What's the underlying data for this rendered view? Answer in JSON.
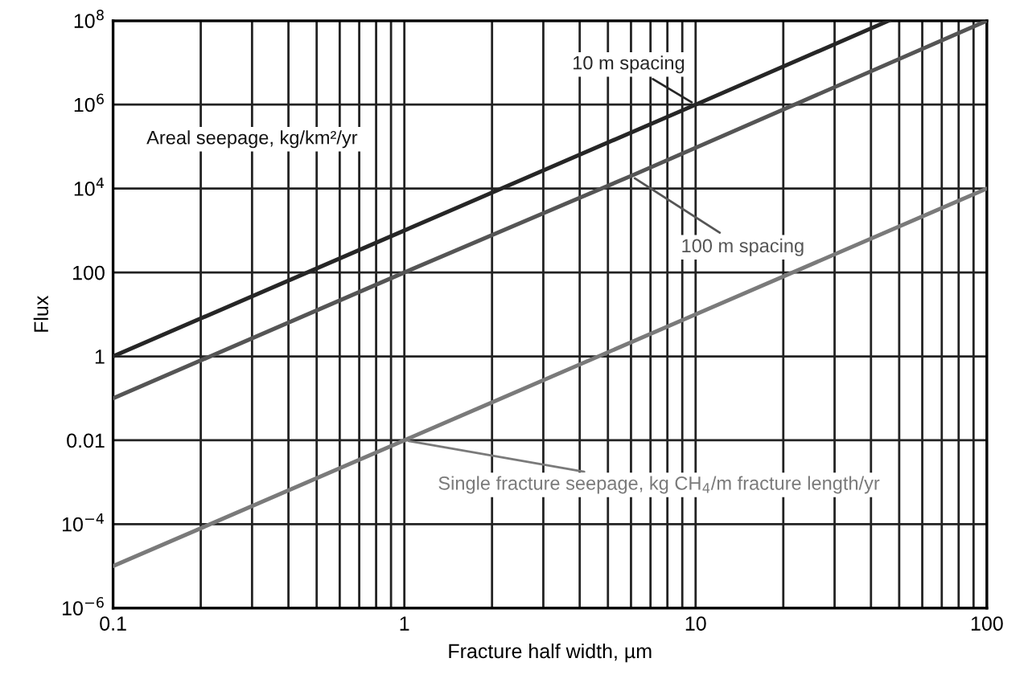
{
  "chart_data": {
    "type": "line",
    "xlabel": "Fracture half width, µm",
    "ylabel": "Flux",
    "log": "xy",
    "grid": true,
    "legend": false,
    "marker": "none",
    "line_style": "solid",
    "xlim": [
      0.1,
      100
    ],
    "ylim": [
      1e-06,
      100000000.0
    ],
    "xticks": [
      0.1,
      {
        "value": 0.2,
        "label": null
      },
      {
        "value": 0.3,
        "label": null
      },
      {
        "value": 0.4,
        "label": null
      },
      {
        "value": 0.5,
        "label": null
      },
      {
        "value": 0.6,
        "label": null
      },
      {
        "value": 0.7,
        "label": null
      },
      {
        "value": 0.8,
        "label": null
      },
      {
        "value": 0.9,
        "label": null
      },
      1,
      {
        "value": 2,
        "label": null
      },
      {
        "value": 3,
        "label": null
      },
      {
        "value": 4,
        "label": null
      },
      {
        "value": 5,
        "label": null
      },
      {
        "value": 6,
        "label": null
      },
      {
        "value": 7,
        "label": null
      },
      {
        "value": 8,
        "label": null
      },
      {
        "value": 9,
        "label": null
      },
      10,
      {
        "value": 20,
        "label": null
      },
      {
        "value": 30,
        "label": null
      },
      {
        "value": 40,
        "label": null
      },
      {
        "value": 50,
        "label": null
      },
      {
        "value": 60,
        "label": null
      },
      {
        "value": 70,
        "label": null
      },
      {
        "value": 80,
        "label": null
      },
      {
        "value": 90,
        "label": null
      },
      100
    ],
    "yticks": [
      {
        "value": 1e-06,
        "label": "10$^{−6}$"
      },
      {
        "value": 0.0001,
        "label": "10$^{−4}$"
      },
      0.01,
      1,
      100,
      {
        "value": 10000.0,
        "label": "10$^{4}$"
      },
      {
        "value": 1000000.0,
        "label": "10$^{6}$"
      },
      {
        "value": 100000000.0,
        "label": "10$^{8}$"
      }
    ],
    "series": [
      {
        "name": "10 m spacing",
        "color": "#262626",
        "x": [
          0.1,
          1,
          10,
          46
        ],
        "values": [
          1,
          1000,
          1000000.0,
          100000000.0
        ]
      },
      {
        "name": "100 m spacing",
        "color": "#555555",
        "x": [
          0.1,
          1,
          6,
          100
        ],
        "values": [
          0.1,
          100,
          20000.0,
          100000000.0
        ]
      },
      {
        "name": "Single fracture seepage, kg CH$_{4}$/m fracture length/yr",
        "color": "#7a7a7a",
        "x": [
          0.1,
          1,
          10,
          100
        ],
        "values": [
          1e-05,
          0.01,
          10,
          10000.0
        ]
      }
    ],
    "annotations": [
      "Areal seepage, kg/km²/yr"
    ]
  }
}
